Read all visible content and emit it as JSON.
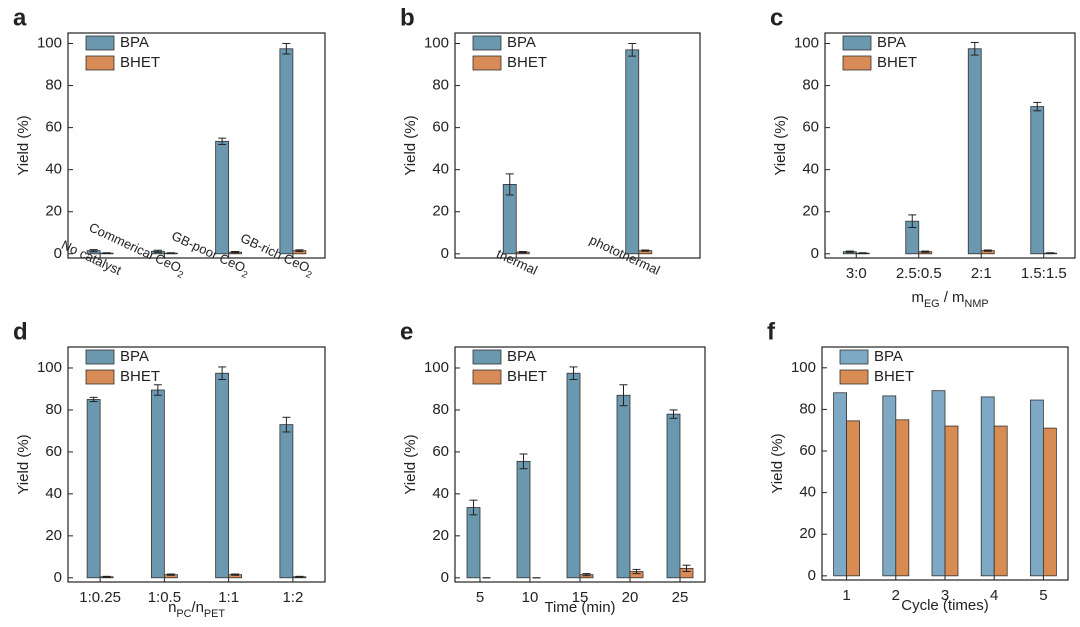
{
  "chart_data": [
    {
      "type": "bar",
      "panel": "a",
      "y_label": "Yield (%)",
      "categories": [
        "No catalyst",
        [
          "Commerical CeO",
          "2"
        ],
        [
          "GB-poor CeO",
          "2"
        ],
        [
          "GB-rich CeO",
          "2"
        ]
      ],
      "series": [
        {
          "name": "BPA",
          "color": "#6b98ae",
          "values": [
            1.5,
            1.2,
            53.5,
            97.5
          ],
          "errors": [
            0.5,
            0.5,
            1.5,
            2.5
          ]
        },
        {
          "name": "BHET",
          "color": "#d98b57",
          "values": [
            0.3,
            0.3,
            0.8,
            1.5
          ],
          "errors": [
            0.2,
            0.2,
            0.3,
            0.4
          ]
        }
      ],
      "ylim": [
        -2,
        105
      ],
      "yticks": [
        0,
        20,
        40,
        60,
        80,
        100
      ]
    },
    {
      "type": "bar",
      "panel": "b",
      "y_label": "Yield (%)",
      "categories": [
        "thermal",
        "photothermal"
      ],
      "series": [
        {
          "name": "BPA",
          "color": "#6b98ae",
          "values": [
            33,
            97
          ],
          "errors": [
            5,
            3
          ]
        },
        {
          "name": "BHET",
          "color": "#d98b57",
          "values": [
            0.8,
            1.5
          ],
          "errors": [
            0.3,
            0.3
          ]
        }
      ],
      "ylim": [
        -2,
        105
      ],
      "yticks": [
        0,
        20,
        40,
        60,
        80,
        100
      ]
    },
    {
      "type": "bar",
      "panel": "c",
      "y_label": "Yield (%)",
      "x_label": [
        "m",
        "EG",
        " / m",
        "NMP"
      ],
      "categories": [
        "3:0",
        "2.5:0.5",
        "2:1",
        "1.5:1.5"
      ],
      "series": [
        {
          "name": "BPA",
          "color": "#6b98ae",
          "values": [
            1,
            15.5,
            97.5,
            70
          ],
          "errors": [
            0.3,
            3,
            3,
            2
          ]
        },
        {
          "name": "BHET",
          "color": "#d98b57",
          "values": [
            0.3,
            1,
            1.5,
            0.3
          ],
          "errors": [
            0.2,
            0.3,
            0.3,
            0.2
          ]
        }
      ],
      "ylim": [
        -2,
        105
      ],
      "yticks": [
        0,
        20,
        40,
        60,
        80,
        100
      ]
    },
    {
      "type": "bar",
      "panel": "d",
      "y_label": "Yield (%)",
      "x_label": [
        "n",
        "PC",
        "/n",
        "PET"
      ],
      "categories": [
        "1:0.25",
        "1:0.5",
        "1:1",
        "1:2"
      ],
      "series": [
        {
          "name": "BPA",
          "color": "#6b98ae",
          "values": [
            85,
            89.5,
            97.5,
            73
          ],
          "errors": [
            1,
            2.5,
            3,
            3.5
          ]
        },
        {
          "name": "BHET",
          "color": "#d98b57",
          "values": [
            0.5,
            1.5,
            1.5,
            0.5
          ],
          "errors": [
            0.2,
            0.3,
            0.3,
            0.2
          ]
        }
      ],
      "ylim": [
        -2,
        110
      ],
      "yticks": [
        0,
        20,
        40,
        60,
        80,
        100
      ]
    },
    {
      "type": "bar",
      "panel": "e",
      "y_label": "Yield (%)",
      "x_label": [
        "Time (min)"
      ],
      "categories": [
        "5",
        "10",
        "15",
        "20",
        "25"
      ],
      "series": [
        {
          "name": "BPA",
          "color": "#6b98ae",
          "values": [
            33.5,
            55.5,
            97.5,
            87,
            78
          ],
          "errors": [
            3.5,
            3.5,
            3,
            5,
            2
          ]
        },
        {
          "name": "BHET",
          "color": "#d98b57",
          "values": [
            0,
            0,
            1.5,
            3,
            4.5
          ],
          "errors": [
            0,
            0,
            0.5,
            1,
            1.5
          ]
        }
      ],
      "ylim": [
        -2,
        110
      ],
      "yticks": [
        0,
        20,
        40,
        60,
        80,
        100
      ]
    },
    {
      "type": "bar",
      "panel": "f",
      "y_label": "Yield (%)",
      "x_label": [
        "Cycle (times)"
      ],
      "categories": [
        "1",
        "2",
        "3",
        "4",
        "5"
      ],
      "series": [
        {
          "name": "BPA",
          "color": "#7ea9c4",
          "values": [
            88,
            86.5,
            89,
            86,
            84.5
          ]
        },
        {
          "name": "BHET",
          "color": "#d88b52",
          "values": [
            74.5,
            75,
            72,
            72,
            71
          ]
        }
      ],
      "ylim": [
        -2,
        110
      ],
      "yticks": [
        0,
        20,
        40,
        60,
        80,
        100
      ]
    }
  ]
}
